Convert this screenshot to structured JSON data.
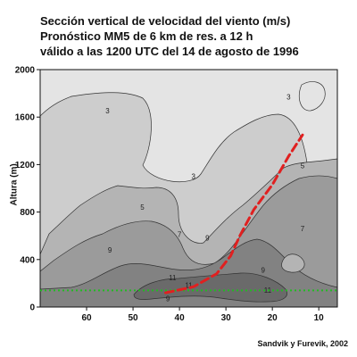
{
  "title": {
    "line1": "Sección vertical de velocidad del viento (m/s)",
    "line2": "Pronóstico MM5 de 6 km de res. a 12 h",
    "line3": "válido a las 1200 UTC del 14 de agosto de 1996"
  },
  "credit": "Sandvik y Furevik, 2002",
  "colors": {
    "fill_level_1": "#e4e4e4",
    "fill_level_3": "#cdcdcd",
    "fill_level_5": "#b4b4b4",
    "fill_level_7": "#9b9b9b",
    "fill_level_9": "#828282",
    "fill_level_11": "#6a6a6a",
    "jet_line": "#e02020",
    "reference_line": "#22bb22"
  },
  "chart_data": {
    "type": "contour",
    "x_axis": {
      "ticks": [
        60,
        50,
        40,
        30,
        20,
        10
      ],
      "range": [
        70,
        6
      ],
      "reversed": true
    },
    "y_axis": {
      "label": "Altura (m)",
      "ticks": [
        0,
        400,
        800,
        1200,
        1600,
        2000
      ],
      "range": [
        0,
        2000
      ]
    },
    "contour_levels": [
      1,
      3,
      5,
      7,
      9,
      11
    ],
    "contour_labels": [
      {
        "text": "3",
        "x": 55.5,
        "y": 1630
      },
      {
        "text": "3",
        "x": 16.5,
        "y": 1750
      },
      {
        "text": "3",
        "x": 37,
        "y": 1080
      },
      {
        "text": "5",
        "x": 48,
        "y": 820
      },
      {
        "text": "5",
        "x": 13.5,
        "y": 1170
      },
      {
        "text": "7",
        "x": 40,
        "y": 590
      },
      {
        "text": "7",
        "x": 13.5,
        "y": 640
      },
      {
        "text": "9",
        "x": 34,
        "y": 560
      },
      {
        "text": "9",
        "x": 55,
        "y": 460
      },
      {
        "text": "9",
        "x": 22,
        "y": 290
      },
      {
        "text": "9",
        "x": 42.5,
        "y": 50
      },
      {
        "text": "11",
        "x": 38,
        "y": 160
      },
      {
        "text": "11",
        "x": 21,
        "y": 120
      },
      {
        "text": "11",
        "x": 41.5,
        "y": 225
      }
    ],
    "jet_axis": {
      "style": "red dashed",
      "points": [
        [
          43,
          120
        ],
        [
          37,
          170
        ],
        [
          32,
          280
        ],
        [
          29,
          430
        ],
        [
          27,
          600
        ],
        [
          24,
          820
        ],
        [
          20,
          1030
        ],
        [
          16.5,
          1270
        ],
        [
          13.5,
          1450
        ]
      ]
    },
    "reference_height": {
      "style": "green dotted",
      "value": 140
    }
  }
}
